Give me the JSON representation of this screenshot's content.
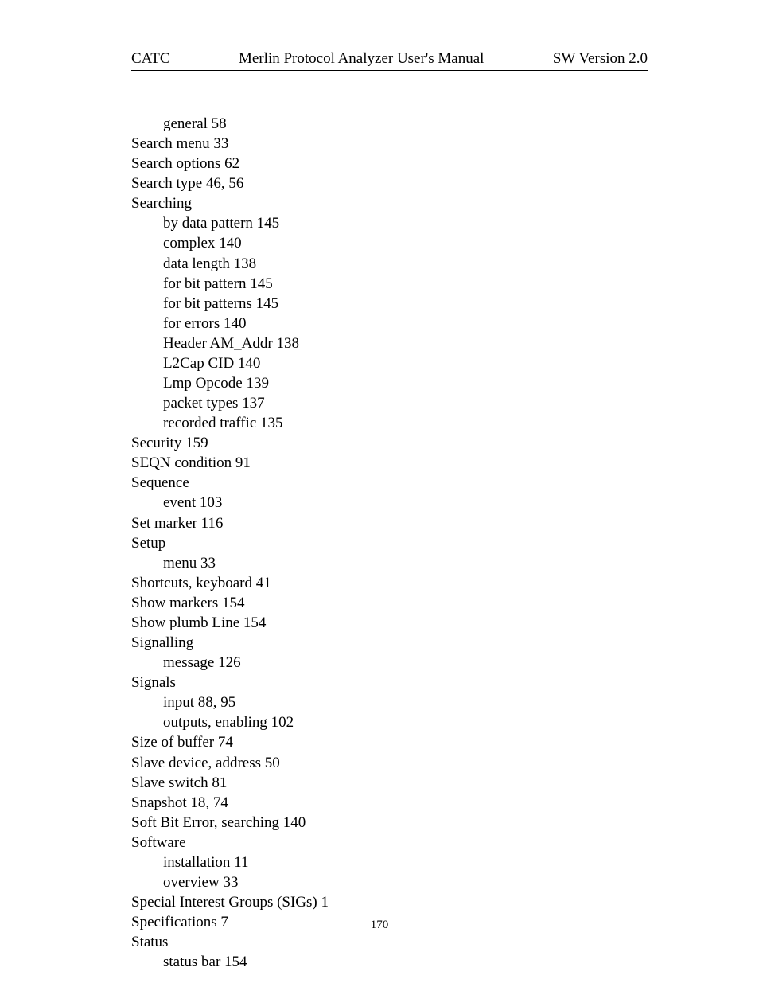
{
  "header": {
    "left": "CATC",
    "center": "Merlin Protocol Analyzer User's Manual",
    "right": "SW Version 2.0"
  },
  "entries": [
    {
      "text": "general 58",
      "indent": 0
    },
    {
      "text": "Search menu 33",
      "indent": 1
    },
    {
      "text": "Search options 62",
      "indent": 1
    },
    {
      "text": "Search type 46, 56",
      "indent": 1
    },
    {
      "text": "Searching",
      "indent": 1
    },
    {
      "text": "by data pattern 145",
      "indent": 0
    },
    {
      "text": "complex 140",
      "indent": 0
    },
    {
      "text": "data length 138",
      "indent": 0
    },
    {
      "text": "for bit pattern 145",
      "indent": 0
    },
    {
      "text": "for bit patterns 145",
      "indent": 0
    },
    {
      "text": "for errors 140",
      "indent": 0
    },
    {
      "text": "Header AM_Addr 138",
      "indent": 0
    },
    {
      "text": "L2Cap CID 140",
      "indent": 0
    },
    {
      "text": "Lmp Opcode 139",
      "indent": 0
    },
    {
      "text": "packet types 137",
      "indent": 0
    },
    {
      "text": "recorded traffic 135",
      "indent": 0
    },
    {
      "text": "Security 159",
      "indent": 1
    },
    {
      "text": "SEQN condition 91",
      "indent": 1
    },
    {
      "text": "Sequence",
      "indent": 1
    },
    {
      "text": "event 103",
      "indent": 0
    },
    {
      "text": "Set marker 116",
      "indent": 1
    },
    {
      "text": "Setup",
      "indent": 1
    },
    {
      "text": "menu 33",
      "indent": 0
    },
    {
      "text": "Shortcuts, keyboard 41",
      "indent": 1
    },
    {
      "text": "Show markers 154",
      "indent": 1
    },
    {
      "text": "Show plumb Line 154",
      "indent": 1
    },
    {
      "text": "Signalling",
      "indent": 1
    },
    {
      "text": "message 126",
      "indent": 0
    },
    {
      "text": "Signals",
      "indent": 1
    },
    {
      "text": "input 88, 95",
      "indent": 0
    },
    {
      "text": "outputs, enabling 102",
      "indent": 0
    },
    {
      "text": "Size of buffer 74",
      "indent": 1
    },
    {
      "text": "Slave device, address 50",
      "indent": 1
    },
    {
      "text": "Slave switch 81",
      "indent": 1
    },
    {
      "text": "Snapshot 18, 74",
      "indent": 1
    },
    {
      "text": "Soft Bit Error, searching 140",
      "indent": 1
    },
    {
      "text": "Software",
      "indent": 1
    },
    {
      "text": "installation 11",
      "indent": 0
    },
    {
      "text": "overview 33",
      "indent": 0
    },
    {
      "text": "Special Interest Groups (SIGs) 1",
      "indent": 1
    },
    {
      "text": "Specifications 7",
      "indent": 1
    },
    {
      "text": "Status",
      "indent": 1
    },
    {
      "text": "status bar 154",
      "indent": 0
    }
  ],
  "pageNumber": "170",
  "style": {
    "fontFamily": "Times New Roman",
    "backgroundColor": "#ffffff",
    "textColor": "#000000",
    "fontSize": 19,
    "lineHeight": 1.32,
    "indentPx": 40,
    "pageNumberFontSize": 15
  }
}
